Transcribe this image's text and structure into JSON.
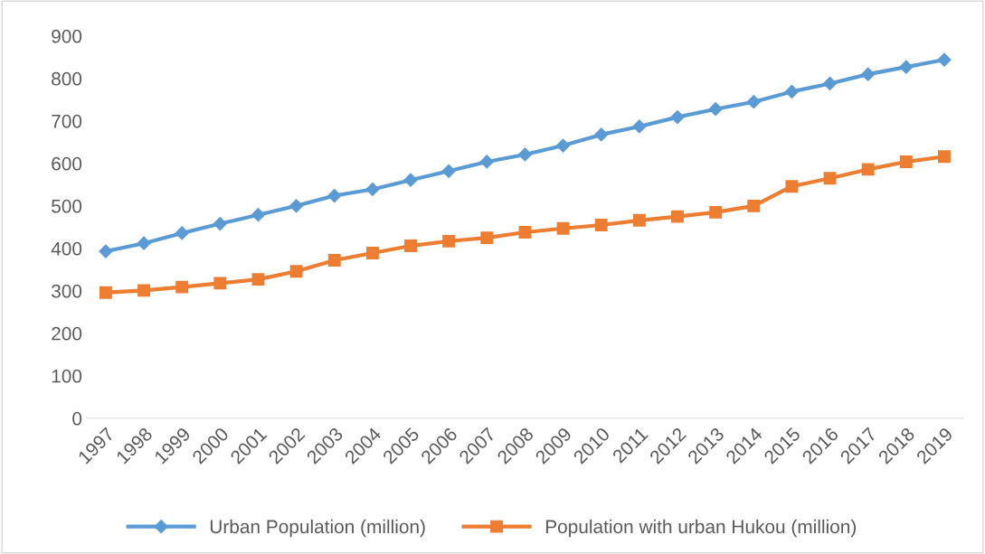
{
  "chart_data": {
    "type": "line",
    "categories": [
      "1997",
      "1998",
      "1999",
      "2000",
      "2001",
      "2002",
      "2003",
      "2004",
      "2005",
      "2006",
      "2007",
      "2008",
      "2009",
      "2010",
      "2011",
      "2012",
      "2013",
      "2014",
      "2015",
      "2016",
      "2017",
      "2018",
      "2019"
    ],
    "series": [
      {
        "name": "Urban Population (million)",
        "color": "#5b9bd5",
        "marker": "diamond",
        "values": [
          393,
          412,
          436,
          458,
          479,
          500,
          524,
          539,
          561,
          582,
          604,
          621,
          642,
          668,
          687,
          709,
          728,
          745,
          769,
          788,
          810,
          827,
          844
        ]
      },
      {
        "name": "Population with urban Hukou (million)",
        "color": "#ed7d31",
        "marker": "square",
        "values": [
          296,
          301,
          309,
          318,
          327,
          346,
          372,
          389,
          406,
          417,
          425,
          438,
          447,
          455,
          466,
          475,
          485,
          500,
          546,
          565,
          586,
          604,
          616
        ]
      }
    ],
    "ylim": [
      0,
      900
    ],
    "yticks": [
      0,
      100,
      200,
      300,
      400,
      500,
      600,
      700,
      800,
      900
    ],
    "grid": false,
    "legend": "bottom",
    "line_style": "solid"
  }
}
